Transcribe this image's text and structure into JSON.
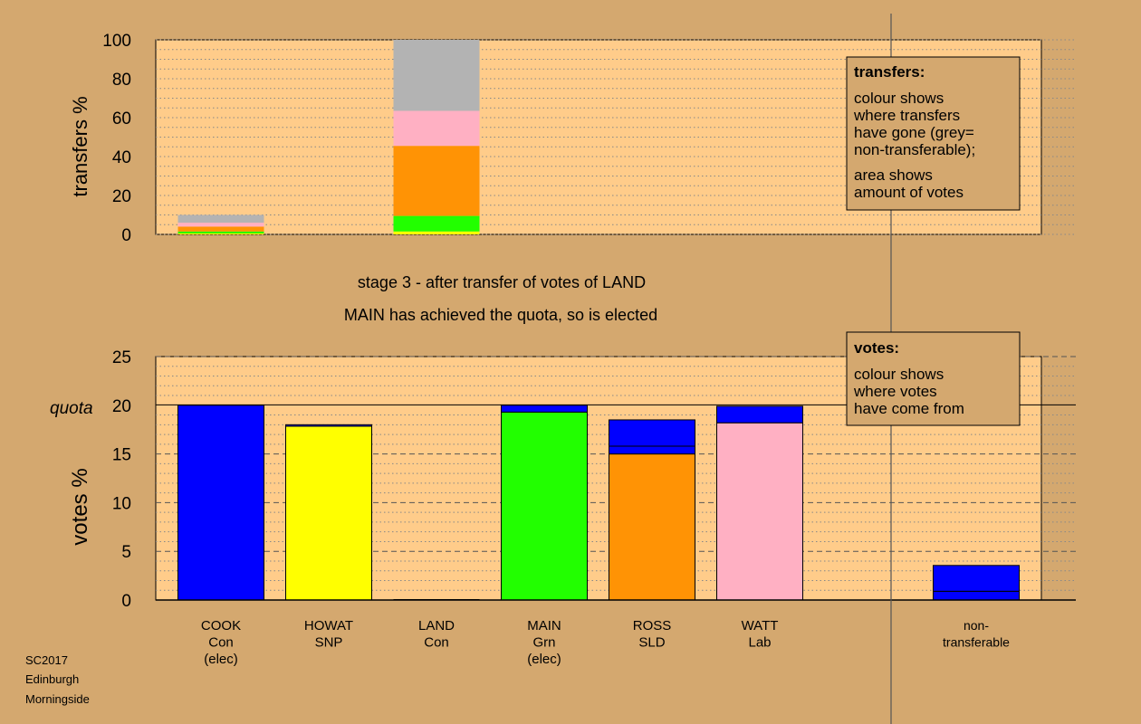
{
  "footer": [
    "SC2017",
    "Edinburgh",
    "Morningside"
  ],
  "stage_line": "stage 3 - after transfer of votes of LAND",
  "result_line": "MAIN has achieved the quota, so is elected",
  "colors": {
    "background": "#D4A86F",
    "plot_background": "#FFCC8A",
    "Con": "#0000FF",
    "SNP": "#FFFF00",
    "Grn": "#22FF00",
    "SLD": "#FF9305",
    "Lab": "#FFB0C3",
    "non_transferable": "#B3B3B3"
  },
  "chart_data": [
    {
      "id": "transfers",
      "type": "bar",
      "stacked": true,
      "ylabel": "transfers %",
      "ylim": [
        0,
        100
      ],
      "yticks": [
        0,
        20,
        40,
        60,
        80,
        100
      ],
      "grid": "dotted",
      "legend": {
        "title": "transfers:",
        "lines": [
          "colour shows",
          "where transfers",
          "have gone (grey=",
          "non-transferable);",
          "",
          "area shows",
          "amount of votes"
        ]
      },
      "bars": [
        {
          "position": "COOK",
          "segments": [
            {
              "party": "SNP",
              "color": "#FFFF00",
              "value": 0.5
            },
            {
              "party": "Grn",
              "color": "#22FF00",
              "value": 1.0
            },
            {
              "party": "SLD",
              "color": "#FF9305",
              "value": 2.5
            },
            {
              "party": "Lab",
              "color": "#FFB0C3",
              "value": 2.0
            },
            {
              "party": "non-transferable",
              "color": "#B3B3B3",
              "value": 4.0
            }
          ]
        },
        {
          "position": "LAND",
          "segments": [
            {
              "party": "SNP",
              "color": "#FFFF00",
              "value": 1.5
            },
            {
              "party": "Grn",
              "color": "#22FF00",
              "value": 8.0
            },
            {
              "party": "SLD",
              "color": "#FF9305",
              "value": 36.0
            },
            {
              "party": "Lab",
              "color": "#FFB0C3",
              "value": 18.0
            },
            {
              "party": "non-transferable",
              "color": "#B3B3B3",
              "value": 36.5
            }
          ]
        }
      ]
    },
    {
      "id": "votes",
      "type": "bar",
      "stacked": true,
      "ylabel": "votes %",
      "ylim": [
        0,
        25
      ],
      "yticks": [
        0,
        5,
        10,
        15,
        20,
        25
      ],
      "quota": 20,
      "quota_label": "quota",
      "grid": "dotted",
      "legend": {
        "title": "votes:",
        "lines": [
          "colour shows",
          "where votes",
          "have come from"
        ]
      },
      "categories": [
        {
          "name": "COOK",
          "party": "Con",
          "note": "(elec)"
        },
        {
          "name": "HOWAT",
          "party": "SNP",
          "note": ""
        },
        {
          "name": "LAND",
          "party": "Con",
          "note": ""
        },
        {
          "name": "MAIN",
          "party": "Grn",
          "note": "(elec)"
        },
        {
          "name": "ROSS",
          "party": "SLD",
          "note": ""
        },
        {
          "name": "WATT",
          "party": "Lab",
          "note": ""
        },
        {
          "name": "",
          "party": "",
          "note": ""
        },
        {
          "name": "non-",
          "party": "transferable",
          "note": ""
        }
      ],
      "bars": [
        {
          "segments": [
            {
              "color": "#0000FF",
              "value": 20.0
            }
          ]
        },
        {
          "segments": [
            {
              "color": "#FFFF00",
              "value": 17.85
            },
            {
              "color": "#0000FF",
              "value": 0.15
            }
          ]
        },
        {
          "segments": []
        },
        {
          "segments": [
            {
              "color": "#22FF00",
              "value": 19.3
            },
            {
              "color": "#0000FF",
              "value": 0.7
            }
          ]
        },
        {
          "segments": [
            {
              "color": "#FF9305",
              "value": 15.0
            },
            {
              "color": "#0000FF",
              "value": 0.8
            },
            {
              "color": "#0000FF",
              "value": 2.7
            }
          ]
        },
        {
          "segments": [
            {
              "color": "#FFB0C3",
              "value": 18.2
            },
            {
              "color": "#0000FF",
              "value": 1.7
            }
          ]
        },
        {
          "segments": []
        },
        {
          "segments": [
            {
              "color": "#0000FF",
              "value": 0.9
            },
            {
              "color": "#0000FF",
              "value": 2.65
            }
          ]
        }
      ]
    }
  ]
}
